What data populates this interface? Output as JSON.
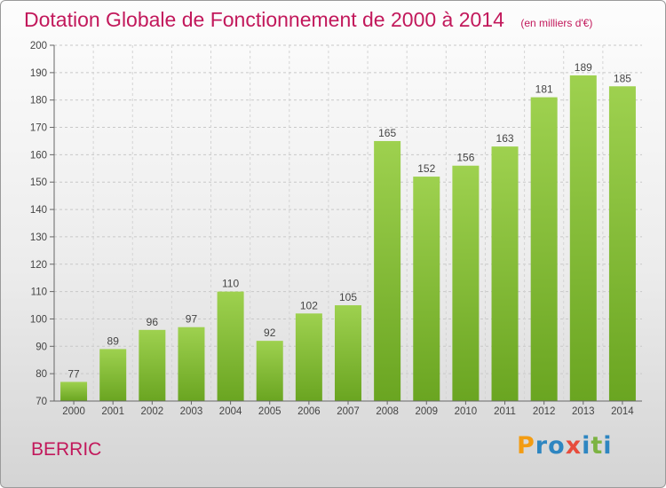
{
  "header": {
    "title": "Dotation Globale de Fonctionnement de 2000 à 2014",
    "subtitle": "(en milliers d'€)"
  },
  "footer": {
    "commune": "BERRIC",
    "logo_letters": [
      "P",
      "r",
      "o",
      "x",
      "i",
      "t",
      "i"
    ],
    "logo_colors": [
      "#f39c12",
      "#2e86c1",
      "#2e86c1",
      "#e74c3c",
      "#2e86c1",
      "#7cb342",
      "#2e86c1"
    ]
  },
  "chart_data": {
    "type": "bar",
    "title": "Dotation Globale de Fonctionnement de 2000 à 2014",
    "subtitle": "(en milliers d'€)",
    "categories": [
      "2000",
      "2001",
      "2002",
      "2003",
      "2004",
      "2005",
      "2006",
      "2007",
      "2008",
      "2009",
      "2010",
      "2011",
      "2012",
      "2013",
      "2014"
    ],
    "values": [
      77,
      89,
      96,
      97,
      110,
      92,
      102,
      105,
      165,
      152,
      156,
      163,
      181,
      189,
      185
    ],
    "xlabel": "",
    "ylabel": "",
    "ylim": [
      70,
      200
    ],
    "yticks": [
      70,
      80,
      90,
      100,
      110,
      120,
      130,
      140,
      150,
      160,
      170,
      180,
      190,
      200
    ],
    "grid": true,
    "bar_color_light": "#9ed14f",
    "bar_color_dark": "#6aa521"
  }
}
